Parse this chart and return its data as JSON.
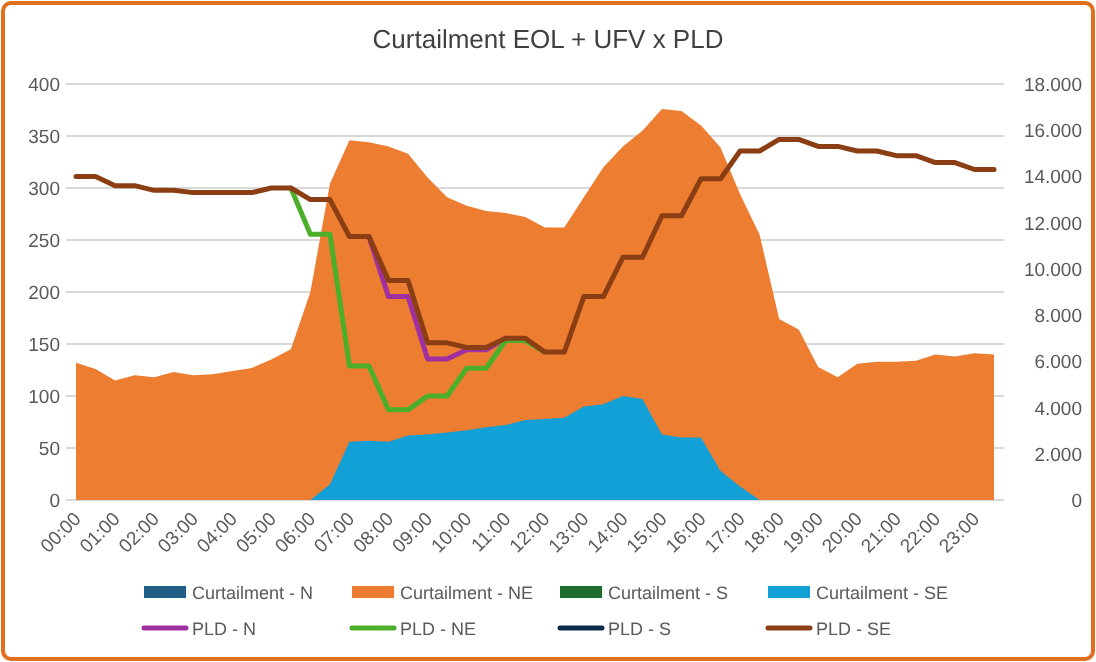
{
  "chart_data": {
    "type": "area",
    "title": "Curtailment EOL + UFV x PLD",
    "categories": [
      "00:00",
      null,
      "01:00",
      null,
      "02:00",
      null,
      "03:00",
      null,
      "04:00",
      null,
      "05:00",
      null,
      "06:00",
      null,
      "07:00",
      null,
      "08:00",
      null,
      "09:00",
      null,
      "10:00",
      null,
      "11:00",
      null,
      "12:00",
      null,
      "13:00",
      null,
      "14:00",
      null,
      "15:00",
      null,
      "16:00",
      null,
      "17:00",
      null,
      "18:00",
      null,
      "19:00",
      null,
      "20:00",
      null,
      "21:00",
      null,
      "22:00",
      null,
      "23:00",
      null
    ],
    "series": [
      {
        "name": "Curtailment - N",
        "type": "area",
        "color": "#1f5f85",
        "values": [
          null,
          null,
          null,
          null,
          null,
          null,
          null,
          null,
          null,
          null,
          null,
          null,
          null,
          null,
          null,
          null,
          null,
          null,
          null,
          null,
          null,
          null,
          null,
          null,
          null,
          null,
          null,
          null,
          null,
          null,
          null,
          null,
          null,
          null,
          null,
          null,
          null,
          null,
          null,
          null,
          null,
          null,
          null,
          null,
          null,
          null,
          null,
          null
        ]
      },
      {
        "name": "Curtailment - NE",
        "type": "area",
        "color": "#ed7d31",
        "values": [
          132,
          126,
          115,
          120,
          118,
          123,
          120,
          121,
          124,
          127,
          135,
          145,
          200,
          304,
          346,
          344,
          340,
          333,
          310,
          291,
          283,
          278,
          276,
          272,
          262,
          262,
          291,
          320,
          340,
          355,
          376,
          374,
          360,
          339,
          294,
          255,
          174,
          164,
          128,
          118,
          131,
          133,
          133,
          134,
          140,
          138,
          141,
          140
        ]
      },
      {
        "name": "Curtailment - S",
        "type": "area",
        "color": "#1e6b2e",
        "values": [
          null,
          null,
          null,
          null,
          null,
          null,
          null,
          null,
          null,
          null,
          null,
          null,
          null,
          null,
          null,
          null,
          null,
          null,
          null,
          null,
          null,
          null,
          null,
          null,
          null,
          null,
          null,
          null,
          null,
          null,
          null,
          null,
          null,
          null,
          null,
          null,
          null,
          null,
          null,
          null,
          null,
          null,
          null,
          null,
          null,
          null,
          null,
          null
        ]
      },
      {
        "name": "Curtailment - SE",
        "type": "area",
        "color": "#12a0d7",
        "values": [
          0,
          0,
          0,
          0,
          0,
          0,
          0,
          0,
          0,
          0,
          0,
          0,
          0,
          15,
          56,
          57,
          56,
          62,
          63,
          65,
          67,
          70,
          72,
          77,
          78,
          79,
          90,
          92,
          100,
          97,
          63,
          60,
          60,
          28,
          13,
          0,
          0,
          0,
          0,
          0,
          0,
          0,
          0,
          0,
          0,
          0,
          0,
          0
        ]
      },
      {
        "name": "PLD - N",
        "type": "line",
        "axis": "y2",
        "color": "#a030a0",
        "values": [
          null,
          null,
          null,
          null,
          null,
          null,
          null,
          null,
          null,
          null,
          null,
          null,
          null,
          null,
          null,
          11400,
          8800,
          8800,
          6100,
          6100,
          6500,
          6500,
          7000,
          null,
          null,
          null,
          null,
          null,
          null,
          null,
          null,
          null,
          null,
          null,
          null,
          null,
          null,
          null,
          null,
          null,
          null,
          null,
          null,
          null,
          null,
          null,
          null,
          null
        ]
      },
      {
        "name": "PLD - NE",
        "type": "line",
        "axis": "y2",
        "color": "#4caf2a",
        "values": [
          null,
          null,
          null,
          null,
          null,
          null,
          null,
          null,
          null,
          null,
          null,
          13500,
          11500,
          11500,
          5800,
          5800,
          3900,
          3900,
          4500,
          4500,
          5700,
          5700,
          6900,
          6900,
          6400,
          null,
          null,
          null,
          null,
          null,
          null,
          null,
          null,
          null,
          null,
          null,
          null,
          null,
          null,
          null,
          null,
          null,
          null,
          null,
          null,
          null,
          null,
          null
        ]
      },
      {
        "name": "PLD - S",
        "type": "line",
        "axis": "y2",
        "color": "#0d2b4a",
        "values": [
          null,
          null,
          null,
          null,
          null,
          null,
          null,
          null,
          null,
          null,
          null,
          null,
          null,
          null,
          null,
          null,
          null,
          null,
          null,
          null,
          null,
          null,
          null,
          null,
          null,
          null,
          null,
          null,
          null,
          null,
          null,
          null,
          null,
          null,
          null,
          null,
          null,
          null,
          null,
          null,
          null,
          null,
          null,
          null,
          null,
          null,
          null,
          null
        ]
      },
      {
        "name": "PLD - SE",
        "type": "line",
        "axis": "y2",
        "color": "#8b3e13",
        "values": [
          14000,
          14000,
          13600,
          13600,
          13400,
          13400,
          13300,
          13300,
          13300,
          13300,
          13500,
          13500,
          13000,
          13000,
          11400,
          11400,
          9500,
          9500,
          6800,
          6800,
          6600,
          6600,
          7000,
          7000,
          6400,
          6400,
          8800,
          8800,
          10500,
          10500,
          12300,
          12300,
          13900,
          13900,
          15100,
          15100,
          15600,
          15600,
          15300,
          15300,
          15100,
          15100,
          14900,
          14900,
          14600,
          14600,
          14300,
          14300
        ]
      }
    ],
    "ylim": [
      0,
      400
    ],
    "yticks": [
      0,
      50,
      100,
      150,
      200,
      250,
      300,
      350,
      400
    ],
    "y2lim": [
      0,
      18000
    ],
    "y2ticks": [
      0,
      {
        "value": 2000,
        "label": "2.000"
      },
      {
        "value": 4000,
        "label": "4.000"
      },
      {
        "value": 6000,
        "label": "6.000"
      },
      {
        "value": 8000,
        "label": "8.000"
      },
      {
        "value": 10000,
        "label": "10.000"
      },
      {
        "value": 12000,
        "label": "12.000"
      },
      {
        "value": 14000,
        "label": "14.000"
      },
      {
        "value": 16000,
        "label": "16.000"
      },
      {
        "value": 18000,
        "label": "18.000"
      }
    ],
    "grid": "y",
    "legend": "bottom"
  }
}
